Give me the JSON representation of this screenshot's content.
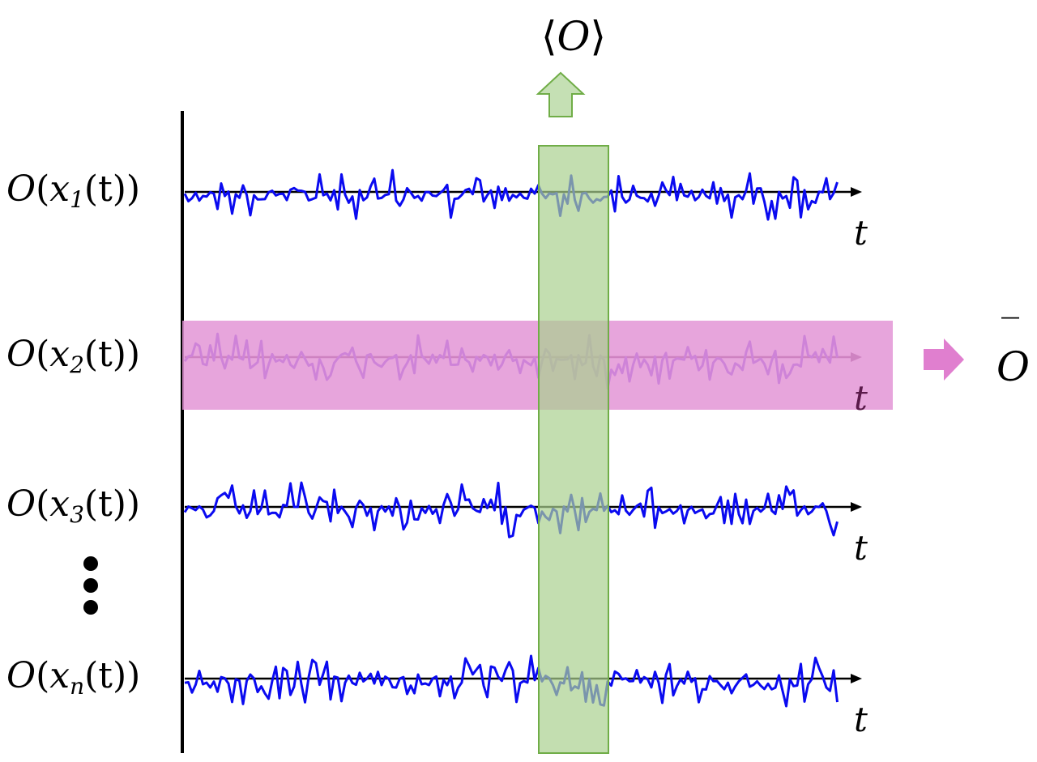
{
  "top_label": {
    "open": "⟨",
    "symbol": "O",
    "close": "⟩"
  },
  "right_label": {
    "symbol": "O",
    "bar": "‾"
  },
  "time_axis_label": "t",
  "rows": [
    {
      "op": "O",
      "open": "(",
      "var": "x",
      "sub": "1",
      "tail": "(t))"
    },
    {
      "op": "O",
      "open": "(",
      "var": "x",
      "sub": "2",
      "tail": "(t))"
    },
    {
      "op": "O",
      "open": "(",
      "var": "x",
      "sub": "3",
      "tail": "(t))"
    },
    {
      "op": "O",
      "open": "(",
      "var": "x",
      "sub": "n",
      "tail": "(t))"
    }
  ],
  "colors": {
    "trace": "#0a0af0",
    "ensemble_fill": "#c5e0b4",
    "ensemble_stroke": "#70ad47",
    "time_fill": "#e395d6",
    "axis": "#000000"
  }
}
